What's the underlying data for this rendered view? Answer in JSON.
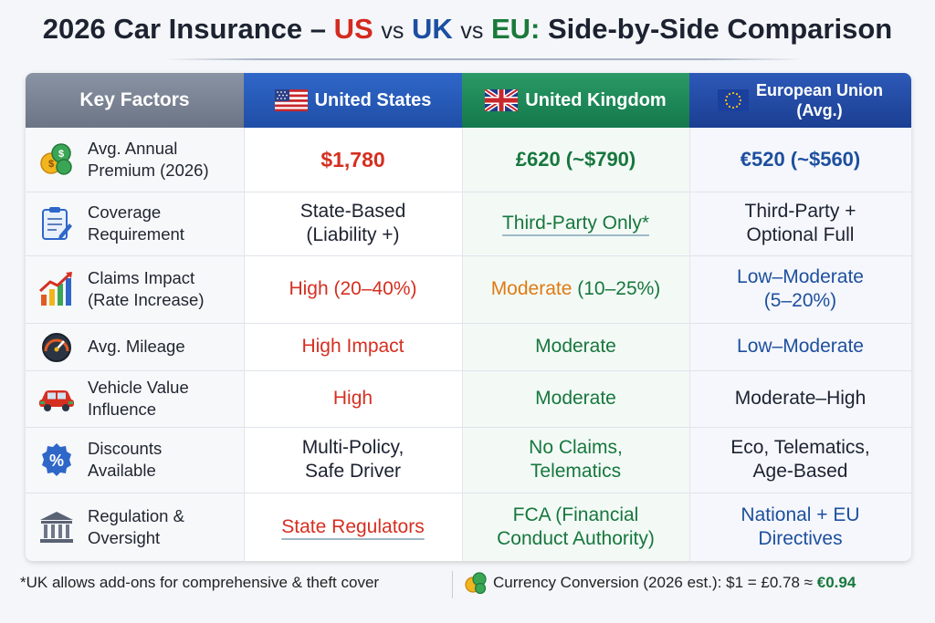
{
  "title": {
    "year": "2026",
    "prefix": "Car Insurance –",
    "us": "US",
    "vs1": "vs",
    "uk": "UK",
    "vs2": "vs",
    "eu": "EU:",
    "suffix": "Side-by-Side Comparison"
  },
  "headers": {
    "factors": "Key Factors",
    "us": "United States",
    "uk": "United Kingdom",
    "eu": "European Union\n(Avg.)"
  },
  "rows": [
    {
      "icon": "coins-icon",
      "factor": "Avg. Annual\nPremium (2026)",
      "us": "$1,780",
      "uk": "£620 (~$790)",
      "eu": "€520 (~$560)"
    },
    {
      "icon": "clipboard-icon",
      "factor": "Coverage\nRequirement",
      "us": "State-Based\n(Liability +)",
      "uk": "Third-Party Only*",
      "eu": "Third-Party +\nOptional Full"
    },
    {
      "icon": "chart-up-icon",
      "factor": "Claims Impact\n(Rate Increase)",
      "us": "High (20–40%)",
      "uk_prefix": "Moderate",
      "uk_suffix": "(10–25%)",
      "eu": "Low–Moderate\n(5–20%)"
    },
    {
      "icon": "speedometer-icon",
      "factor": "Avg. Mileage",
      "us": "High Impact",
      "uk": "Moderate",
      "eu": "Low–Moderate"
    },
    {
      "icon": "car-icon",
      "factor": "Vehicle Value\nInfluence",
      "us": "High",
      "uk": "Moderate",
      "eu": "Moderate–High"
    },
    {
      "icon": "percent-badge-icon",
      "factor": "Discounts\nAvailable",
      "us": "Multi-Policy,\nSafe Driver",
      "uk": "No Claims,\nTelematics",
      "eu": "Eco, Telematics,\nAge-Based"
    },
    {
      "icon": "government-building-icon",
      "factor": "Regulation &\nOversight",
      "us": "State Regulators",
      "uk": "FCA (Financial\nConduct Authority)",
      "eu": "National + EU\nDirectives"
    }
  ],
  "footer": {
    "note": "*UK allows add-ons for comprehensive & theft cover",
    "conversion_prefix": "Currency Conversion (2026 est.): $1 = £0.78 ≈",
    "conversion_accent": "€0.94"
  },
  "colors": {
    "us": "#1f4ea6",
    "uk": "#14784b",
    "eu": "#1b3f92",
    "red": "#d52f21",
    "orange": "#e07a12",
    "green": "#17773d",
    "blue": "#1d4f9e"
  }
}
